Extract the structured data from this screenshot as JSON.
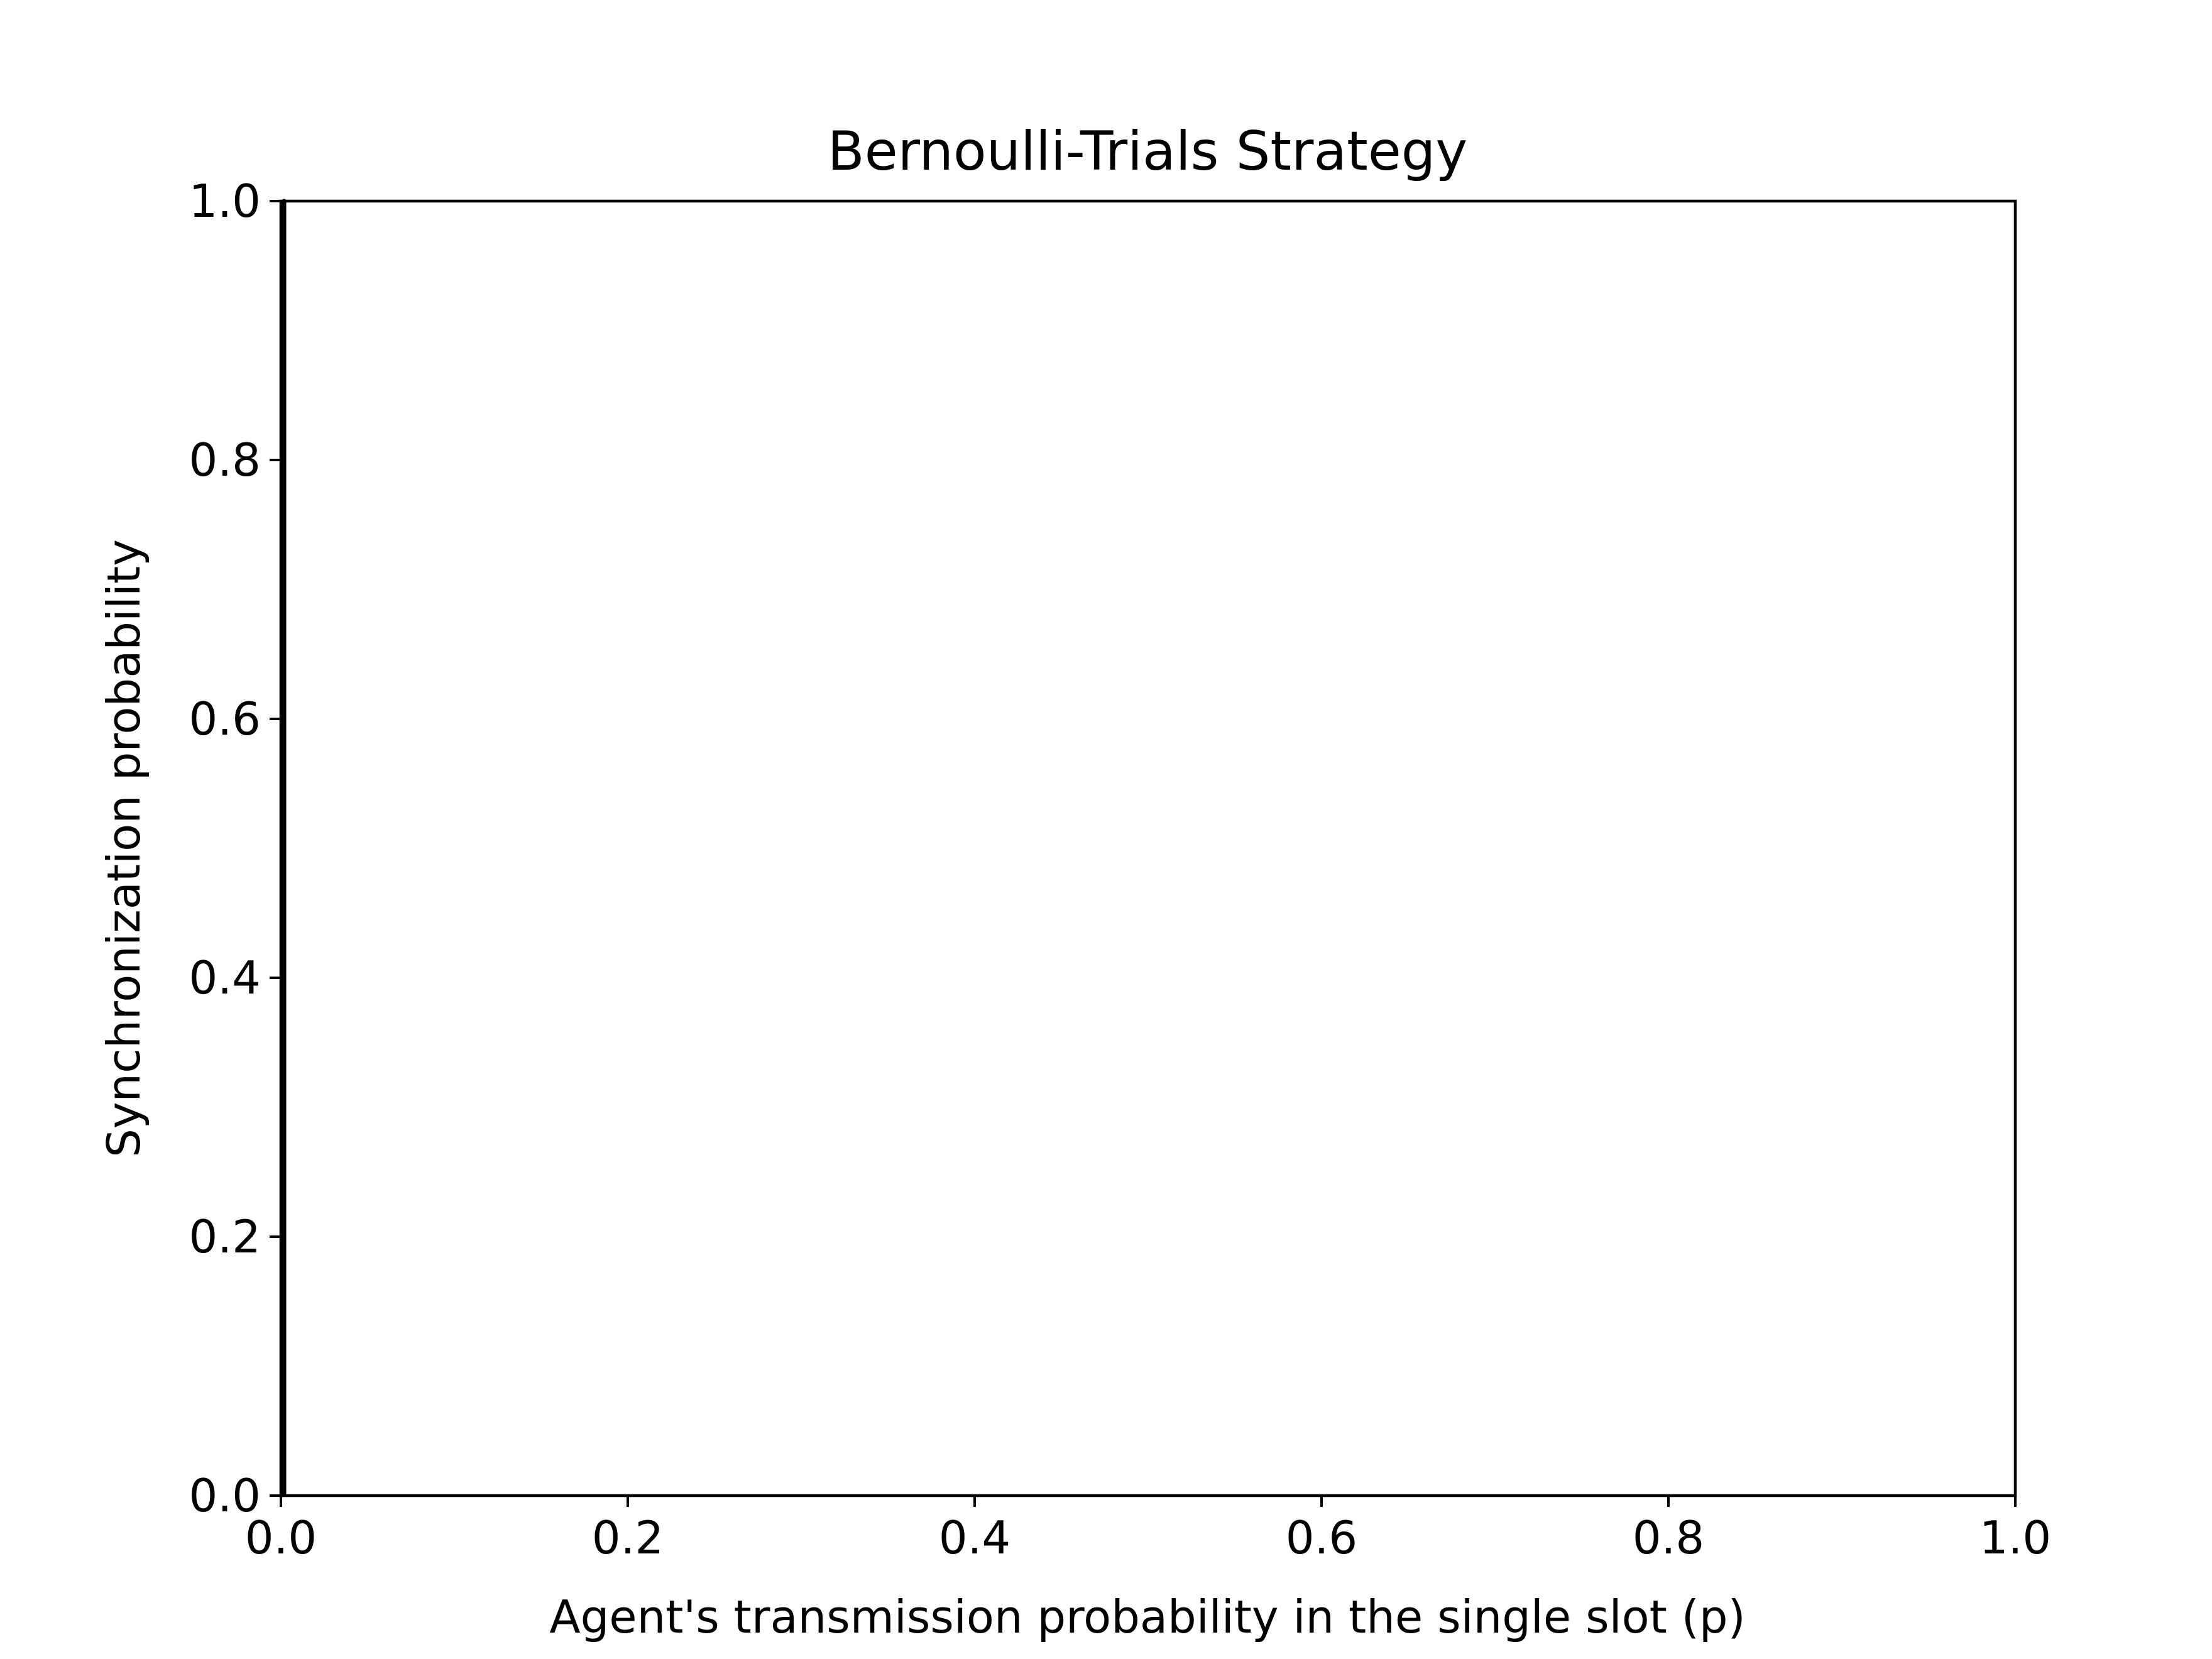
{
  "chart_data": {
    "type": "line",
    "title": "Bernoulli-Trials Strategy",
    "xlabel": "Agent's transmission probability in the single slot (p)",
    "ylabel": "Synchronization probability",
    "xlim": [
      0.0,
      1.0
    ],
    "ylim": [
      0.0,
      1.0
    ],
    "xticks": [
      "0.0",
      "0.2",
      "0.4",
      "0.6",
      "0.8",
      "1.0"
    ],
    "yticks": [
      "0.0",
      "0.2",
      "0.4",
      "0.6",
      "0.8",
      "1.0"
    ],
    "grid": false,
    "series": [
      {
        "x": [
          0.0,
          0.0,
          0.0,
          0.0,
          0.0,
          0.0
        ],
        "y": [
          0.0,
          0.29,
          0.4,
          0.51,
          1.0,
          0.0
        ],
        "color": "#000000"
      }
    ]
  }
}
